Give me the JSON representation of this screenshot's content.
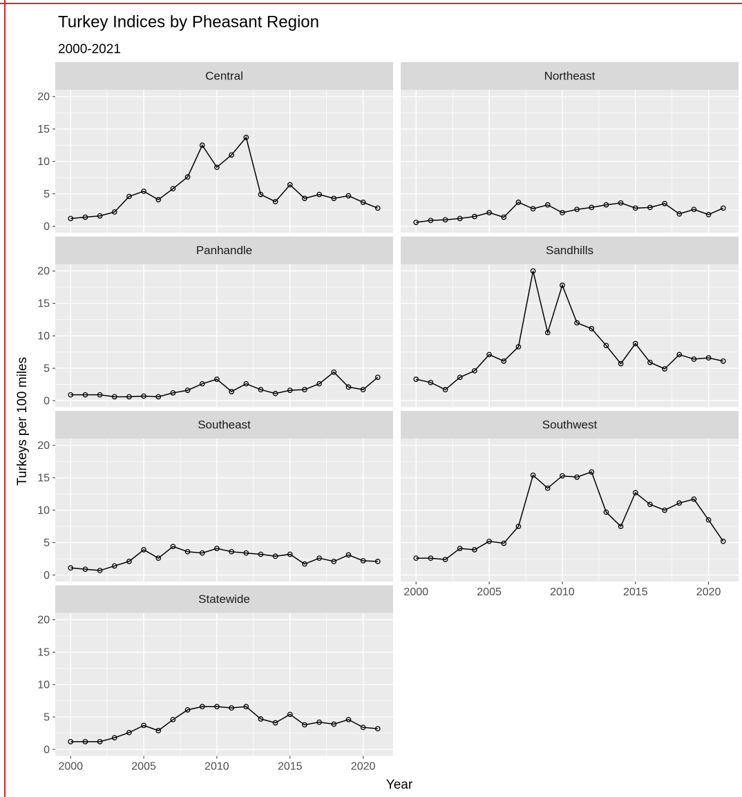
{
  "chart_data": {
    "type": "line",
    "title": "Turkey Indices by Pheasant Region",
    "subtitle": "2000-2021",
    "x_label": "Year",
    "y_label": "Turkeys per 100 miles",
    "x": [
      2000,
      2001,
      2002,
      2003,
      2004,
      2005,
      2006,
      2007,
      2008,
      2009,
      2010,
      2011,
      2012,
      2013,
      2014,
      2015,
      2016,
      2017,
      2018,
      2019,
      2020,
      2021
    ],
    "xlim": [
      1998.95,
      2022.05
    ],
    "xticks": [
      2000,
      2005,
      2010,
      2015,
      2020
    ],
    "ylim": [
      -1,
      21.05
    ],
    "yticks": [
      0,
      5,
      10,
      15,
      20
    ],
    "grid": true,
    "series": [
      {
        "name": "Central",
        "color": "#000000",
        "values": [
          1.2,
          1.4,
          1.6,
          2.2,
          4.6,
          5.4,
          4.1,
          5.8,
          7.6,
          12.5,
          9.1,
          11.0,
          13.7,
          4.9,
          3.8,
          6.4,
          4.3,
          4.9,
          4.3,
          4.7,
          3.7,
          2.8
        ]
      },
      {
        "name": "Northeast",
        "color": "#000000",
        "values": [
          0.6,
          0.9,
          1.0,
          1.2,
          1.5,
          2.1,
          1.4,
          3.7,
          2.7,
          3.3,
          2.1,
          2.6,
          2.9,
          3.3,
          3.6,
          2.8,
          2.9,
          3.5,
          1.9,
          2.6,
          1.8,
          2.8
        ]
      },
      {
        "name": "Panhandle",
        "color": "#000000",
        "values": [
          0.9,
          0.9,
          0.9,
          0.6,
          0.6,
          0.7,
          0.6,
          1.2,
          1.6,
          2.6,
          3.3,
          1.4,
          2.6,
          1.7,
          1.1,
          1.6,
          1.7,
          2.6,
          4.4,
          2.1,
          1.7,
          3.6
        ]
      },
      {
        "name": "Sandhills",
        "color": "#000000",
        "values": [
          3.3,
          2.8,
          1.7,
          3.6,
          4.6,
          7.1,
          6.1,
          8.3,
          20.0,
          10.5,
          17.8,
          12.0,
          11.1,
          8.5,
          5.7,
          8.8,
          5.9,
          4.9,
          7.1,
          6.4,
          6.6,
          6.1
        ]
      },
      {
        "name": "Southeast",
        "color": "#000000",
        "values": [
          1.1,
          0.9,
          0.7,
          1.4,
          2.1,
          3.9,
          2.6,
          4.4,
          3.6,
          3.4,
          4.1,
          3.6,
          3.4,
          3.2,
          2.9,
          3.2,
          1.7,
          2.6,
          2.1,
          3.1,
          2.2,
          2.1
        ]
      },
      {
        "name": "Southwest",
        "color": "#000000",
        "values": [
          2.6,
          2.6,
          2.4,
          4.1,
          3.9,
          5.2,
          4.9,
          7.5,
          15.4,
          13.4,
          15.3,
          15.1,
          15.9,
          9.7,
          7.5,
          12.7,
          10.9,
          10.0,
          11.1,
          11.7,
          8.5,
          5.2
        ]
      },
      {
        "name": "Statewide",
        "color": "#000000",
        "values": [
          1.2,
          1.2,
          1.2,
          1.8,
          2.6,
          3.7,
          2.9,
          4.6,
          6.1,
          6.6,
          6.6,
          6.4,
          6.6,
          4.7,
          4.1,
          5.4,
          3.8,
          4.2,
          3.9,
          4.6,
          3.4,
          3.2
        ]
      }
    ]
  }
}
